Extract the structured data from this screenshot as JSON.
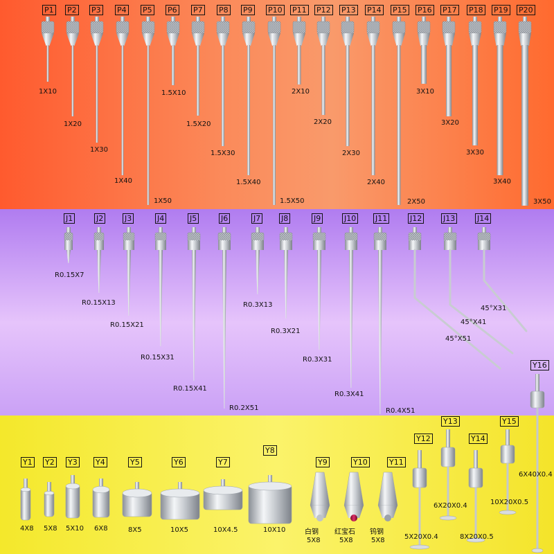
{
  "probes_p": [
    {
      "tag": "P1",
      "size": "1X10"
    },
    {
      "tag": "P2",
      "size": "1X20"
    },
    {
      "tag": "P3",
      "size": "1X30"
    },
    {
      "tag": "P4",
      "size": "1X40"
    },
    {
      "tag": "P5",
      "size": "1X50"
    },
    {
      "tag": "P6",
      "size": "1.5X10"
    },
    {
      "tag": "P7",
      "size": "1.5X20"
    },
    {
      "tag": "P8",
      "size": "1.5X30"
    },
    {
      "tag": "P9",
      "size": "1.5X40"
    },
    {
      "tag": "P10",
      "size": "1.5X50"
    },
    {
      "tag": "P11",
      "size": "2X10"
    },
    {
      "tag": "P12",
      "size": "2X20"
    },
    {
      "tag": "P13",
      "size": "2X30"
    },
    {
      "tag": "P14",
      "size": "2X40"
    },
    {
      "tag": "P15",
      "size": "2X50"
    },
    {
      "tag": "P16",
      "size": "3X10"
    },
    {
      "tag": "P17",
      "size": "3X20"
    },
    {
      "tag": "P18",
      "size": "3X30"
    },
    {
      "tag": "P19",
      "size": "3X40"
    },
    {
      "tag": "P20",
      "size": "3X50"
    }
  ],
  "probes_j": [
    {
      "tag": "J1",
      "size": "R0.15X7"
    },
    {
      "tag": "J2",
      "size": "R0.15X13"
    },
    {
      "tag": "J3",
      "size": "R0.15X21"
    },
    {
      "tag": "J4",
      "size": "R0.15X31"
    },
    {
      "tag": "J5",
      "size": "R0.15X41"
    },
    {
      "tag": "J6",
      "size": "R0.2X51"
    },
    {
      "tag": "J7",
      "size": "R0.3X13"
    },
    {
      "tag": "J8",
      "size": "R0.3X21"
    },
    {
      "tag": "J9",
      "size": "R0.3X31"
    },
    {
      "tag": "J10",
      "size": "R0.3X41"
    },
    {
      "tag": "J11",
      "size": "R0.4X51"
    },
    {
      "tag": "J12",
      "size": "45°X51"
    },
    {
      "tag": "J13",
      "size": "45°X41"
    },
    {
      "tag": "J14",
      "size": "45°X31"
    }
  ],
  "probes_y": [
    {
      "tag": "Y1",
      "size": "4X8"
    },
    {
      "tag": "Y2",
      "size": "5X8"
    },
    {
      "tag": "Y3",
      "size": "5X10"
    },
    {
      "tag": "Y4",
      "size": "6X8"
    },
    {
      "tag": "Y5",
      "size": "8X5"
    },
    {
      "tag": "Y6",
      "size": "10X5"
    },
    {
      "tag": "Y7",
      "size": "10X4.5"
    },
    {
      "tag": "Y8",
      "size": "10X10"
    },
    {
      "tag": "Y9",
      "material": "白钢",
      "size": "5X8"
    },
    {
      "tag": "Y10",
      "material": "红宝石",
      "size": "5X8"
    },
    {
      "tag": "Y11",
      "material": "钨钢",
      "size": "5X8"
    },
    {
      "tag": "Y12",
      "size": "5X20X0.4"
    },
    {
      "tag": "Y13",
      "size": "6X20X0.4"
    },
    {
      "tag": "Y14",
      "size": "8X20X0.5"
    },
    {
      "tag": "Y15",
      "size": "10X20X0.5"
    },
    {
      "tag": "Y16",
      "size": "6X40X0.4"
    }
  ]
}
